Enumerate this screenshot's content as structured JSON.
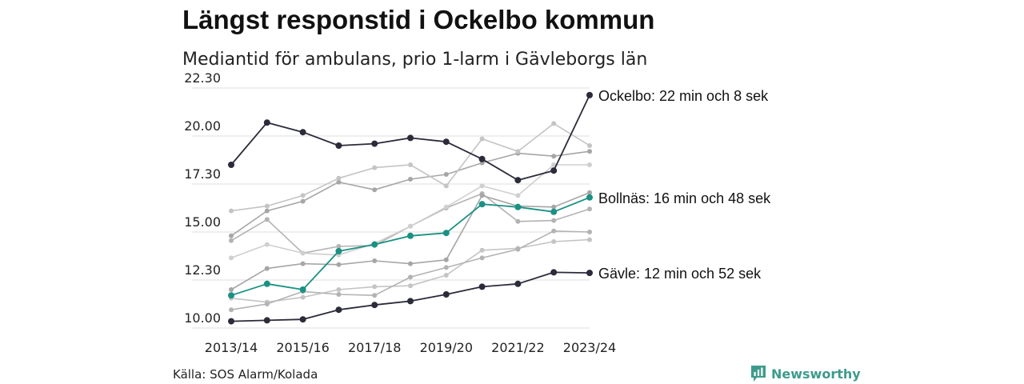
{
  "header": {
    "title": "Längst responstid i Ockelbo kommun",
    "subtitle": "Mediantid för ambulans, prio 1-larm i Gävleborgs län"
  },
  "footer": {
    "source": "Källa: SOS Alarm/Kolada",
    "brand": "Newsworthy",
    "brand_icon": "newsworthy-logo-icon"
  },
  "colors": {
    "highlight_dark": "#2b2b3a",
    "highlight_teal": "#1a9183",
    "background_series": [
      "#a6a6a6",
      "#c4c4c4",
      "#b3b3b3",
      "#cfcfcf"
    ],
    "grid": "#dddddd",
    "brand": "#3e9b8c"
  },
  "chart_data": {
    "type": "line",
    "x": [
      "2013/14",
      "2014/15",
      "2015/16",
      "2016/17",
      "2017/18",
      "2018/19",
      "2019/20",
      "2020/21",
      "2021/22",
      "2022/23",
      "2023/24"
    ],
    "x_tick_labels": [
      "2013/14",
      "2015/16",
      "2017/18",
      "2019/20",
      "2021/22",
      "2023/24"
    ],
    "y_tick_labels": [
      "10.00",
      "12.30",
      "15.00",
      "17.30",
      "20.00",
      "22.30"
    ],
    "y_tick_values": [
      10,
      12.5,
      15,
      17.5,
      20,
      22.5
    ],
    "ylim": [
      10,
      22.5
    ],
    "grid": "horizontal",
    "highlighted": [
      {
        "name": "Ockelbo",
        "label": "Ockelbo: 22 min och 8 sek",
        "color": "#2b2b3a",
        "values": [
          18.5,
          20.7,
          20.2,
          19.5,
          19.6,
          19.9,
          19.7,
          18.8,
          17.7,
          18.2,
          22.13
        ]
      },
      {
        "name": "Bollnäs",
        "label": "Bollnäs: 16 min och 48 sek",
        "color": "#1a9183",
        "values": [
          11.7,
          12.3,
          12.0,
          14.0,
          14.35,
          14.8,
          14.95,
          16.45,
          16.3,
          16.05,
          16.8
        ]
      },
      {
        "name": "Gävle",
        "label": "Gävle: 12 min och 52 sek",
        "color": "#2b2b3a",
        "values": [
          10.35,
          10.4,
          10.45,
          10.95,
          11.2,
          11.4,
          11.75,
          12.15,
          12.3,
          12.9,
          12.87
        ]
      }
    ],
    "background": [
      {
        "values": [
          14.8,
          16.1,
          16.6,
          17.6,
          17.2,
          17.75,
          18.0,
          18.6,
          19.1,
          18.95,
          19.2
        ]
      },
      {
        "values": [
          16.1,
          16.35,
          16.9,
          17.8,
          18.35,
          18.5,
          17.4,
          19.85,
          19.2,
          20.65,
          19.5
        ]
      },
      {
        "values": [
          14.55,
          15.65,
          13.9,
          14.25,
          14.3,
          15.3,
          16.25,
          17.0,
          15.55,
          15.6,
          16.2
        ]
      },
      {
        "values": [
          13.65,
          14.35,
          13.9,
          13.8,
          14.4,
          15.3,
          16.3,
          17.4,
          16.9,
          18.5,
          18.5
        ]
      },
      {
        "values": [
          12.0,
          13.1,
          13.35,
          13.3,
          13.5,
          13.35,
          13.55,
          16.9,
          16.35,
          16.3,
          17.05
        ]
      },
      {
        "values": [
          11.55,
          11.35,
          11.6,
          12.0,
          12.15,
          12.2,
          12.75,
          14.05,
          14.15,
          14.5,
          14.6
        ]
      },
      {
        "values": [
          10.95,
          11.25,
          11.9,
          11.75,
          11.7,
          12.65,
          13.15,
          13.65,
          14.1,
          15.05,
          15.0
        ]
      }
    ]
  }
}
